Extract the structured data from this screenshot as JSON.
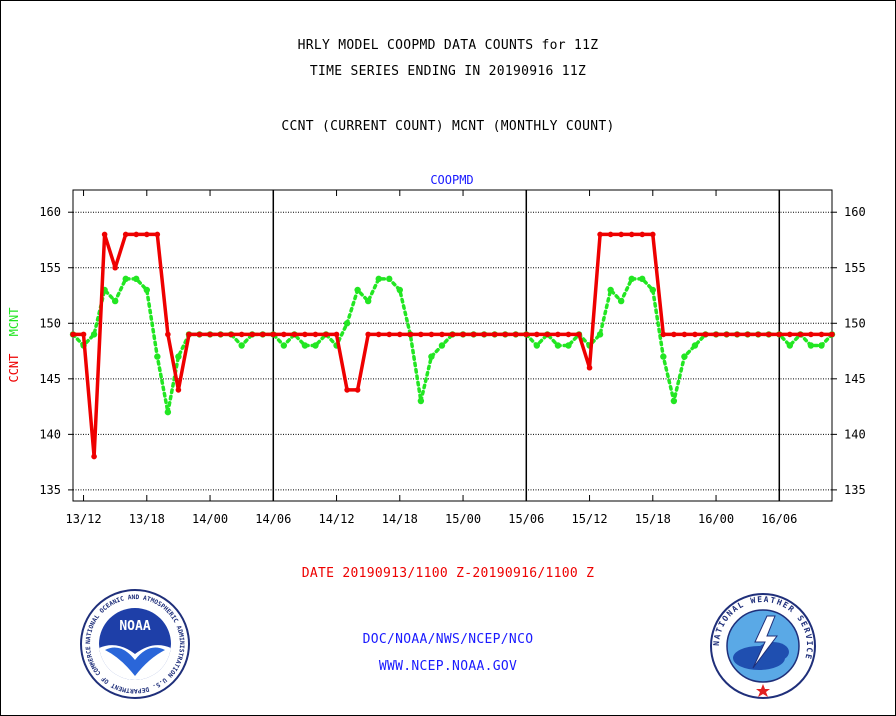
{
  "header": {
    "title_line1": "HRLY MODEL COOPMD DATA COUNTS for 11Z",
    "title_line2": "TIME SERIES ENDING IN 20190916 11Z",
    "subtitle": "CCNT (CURRENT COUNT) MCNT (MONTHLY COUNT)"
  },
  "footer": {
    "date_range": "DATE 20190913/1100 Z-20190916/1100 Z",
    "org": "DOC/NOAA/NWS/NCEP/NCO",
    "url": "WWW.NCEP.NOAA.GOV"
  },
  "logos": {
    "noaa_text": "NOAA",
    "noaa_ring_text": "NATIONAL OCEANIC AND ATMOSPHERIC ADMINISTRATION U.S. DEPARTMENT OF COMMERCE",
    "nws_ring_text": "NATIONAL WEATHER SERVICE"
  },
  "colors": {
    "ccnt": "#ee0000",
    "mcnt": "#22e622",
    "label_blue": "#1a1aff",
    "ylabel_green": "#22e622"
  },
  "chart_data": {
    "type": "line",
    "title": "COOPMD",
    "ylabel_parts": [
      {
        "text": "CCNT",
        "color": "#ee0000"
      },
      {
        "text": "MCNT",
        "color": "#22e622"
      }
    ],
    "ylim": [
      134,
      162
    ],
    "yticks": [
      135,
      140,
      145,
      150,
      155,
      160
    ],
    "x_start": "13/11",
    "x_step_hours": 1,
    "xlim_hours": [
      0,
      72
    ],
    "xticks": [
      {
        "hour": 1,
        "label": "13/12"
      },
      {
        "hour": 7,
        "label": "13/18"
      },
      {
        "hour": 13,
        "label": "14/00"
      },
      {
        "hour": 19,
        "label": "14/06"
      },
      {
        "hour": 25,
        "label": "14/12"
      },
      {
        "hour": 31,
        "label": "14/18"
      },
      {
        "hour": 37,
        "label": "15/00"
      },
      {
        "hour": 43,
        "label": "15/06"
      },
      {
        "hour": 49,
        "label": "15/12"
      },
      {
        "hour": 55,
        "label": "15/18"
      },
      {
        "hour": 61,
        "label": "16/00"
      },
      {
        "hour": 67,
        "label": "16/06"
      }
    ],
    "day_boundaries_hours": [
      19,
      43,
      67
    ],
    "grid": true,
    "series": [
      {
        "name": "CCNT",
        "color": "#ee0000",
        "style": "solid",
        "values": [
          149,
          149,
          138,
          158,
          155,
          158,
          158,
          158,
          158,
          149,
          144,
          149,
          149,
          149,
          149,
          149,
          149,
          149,
          149,
          149,
          149,
          149,
          149,
          149,
          149,
          149,
          144,
          144,
          149,
          149,
          149,
          149,
          149,
          149,
          149,
          149,
          149,
          149,
          149,
          149,
          149,
          149,
          149,
          149,
          149,
          149,
          149,
          149,
          149,
          146,
          158,
          158,
          158,
          158,
          158,
          158,
          149,
          149,
          149,
          149,
          149,
          149,
          149,
          149,
          149,
          149,
          149,
          149,
          149,
          149,
          149,
          149,
          149
        ]
      },
      {
        "name": "MCNT",
        "color": "#22e622",
        "style": "dotted",
        "values": [
          149,
          148,
          149,
          153,
          152,
          154,
          154,
          153,
          147,
          142,
          147,
          149,
          149,
          149,
          149,
          149,
          148,
          149,
          149,
          149,
          148,
          149,
          148,
          148,
          149,
          148,
          150,
          153,
          152,
          154,
          154,
          153,
          149,
          143,
          147,
          148,
          149,
          149,
          149,
          149,
          149,
          149,
          149,
          149,
          148,
          149,
          148,
          148,
          149,
          148,
          149,
          153,
          152,
          154,
          154,
          153,
          147,
          143,
          147,
          148,
          149,
          149,
          149,
          149,
          149,
          149,
          149,
          149,
          148,
          149,
          148,
          148,
          149
        ]
      }
    ]
  }
}
